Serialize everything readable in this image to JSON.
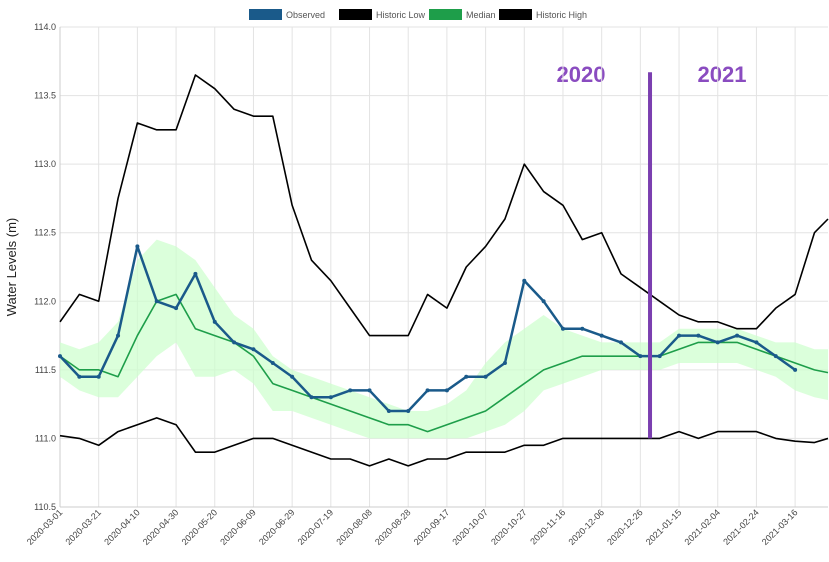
{
  "chart_data": {
    "type": "line",
    "ylabel": "Water Levels (m)",
    "x": [
      "2020-03-01",
      "2020-03-11",
      "2020-03-21",
      "2020-03-31",
      "2020-04-10",
      "2020-04-20",
      "2020-04-30",
      "2020-05-10",
      "2020-05-20",
      "2020-05-30",
      "2020-06-09",
      "2020-06-19",
      "2020-06-29",
      "2020-07-09",
      "2020-07-19",
      "2020-07-29",
      "2020-08-08",
      "2020-08-18",
      "2020-08-28",
      "2020-09-07",
      "2020-09-17",
      "2020-09-27",
      "2020-10-07",
      "2020-10-17",
      "2020-10-27",
      "2020-11-06",
      "2020-11-16",
      "2020-11-26",
      "2020-12-06",
      "2020-12-16",
      "2020-12-26",
      "2021-01-05",
      "2021-01-15",
      "2021-01-25",
      "2021-02-04",
      "2021-02-14",
      "2021-02-24",
      "2021-03-06",
      "2021-03-16",
      "2021-03-26",
      "2021-04-02"
    ],
    "series": [
      {
        "name": "Observed",
        "color": "#1a5a8a",
        "markers": true,
        "values": [
          111.6,
          111.45,
          111.45,
          111.75,
          112.4,
          112.0,
          111.95,
          112.2,
          111.85,
          111.7,
          111.65,
          111.55,
          111.45,
          111.3,
          111.3,
          111.35,
          111.35,
          111.2,
          111.2,
          111.35,
          111.35,
          111.45,
          111.45,
          111.55,
          112.15,
          112.0,
          111.8,
          111.8,
          111.75,
          111.7,
          111.6,
          111.6,
          111.75,
          111.75,
          111.7,
          111.75,
          111.7,
          111.6,
          111.5,
          null,
          null
        ]
      },
      {
        "name": "Historic Low",
        "color": "#000000",
        "values": [
          111.02,
          111.0,
          110.95,
          111.05,
          111.1,
          111.15,
          111.1,
          110.9,
          110.9,
          110.95,
          111.0,
          111.0,
          110.95,
          110.9,
          110.85,
          110.85,
          110.8,
          110.85,
          110.8,
          110.85,
          110.85,
          110.9,
          110.9,
          110.9,
          110.95,
          110.95,
          111.0,
          111.0,
          111.0,
          111.0,
          111.0,
          111.0,
          111.05,
          111.0,
          111.05,
          111.05,
          111.05,
          111.0,
          110.98,
          110.97,
          111.0
        ]
      },
      {
        "name": "Median",
        "color": "#1e9e4a",
        "values": [
          111.6,
          111.5,
          111.5,
          111.45,
          111.75,
          112.0,
          112.05,
          111.8,
          111.75,
          111.7,
          111.6,
          111.4,
          111.35,
          111.3,
          111.25,
          111.2,
          111.15,
          111.1,
          111.1,
          111.05,
          111.1,
          111.15,
          111.2,
          111.3,
          111.4,
          111.5,
          111.55,
          111.6,
          111.6,
          111.6,
          111.6,
          111.6,
          111.65,
          111.7,
          111.7,
          111.7,
          111.65,
          111.6,
          111.55,
          111.5,
          111.48
        ]
      },
      {
        "name": "Historic High",
        "color": "#000000",
        "values": [
          111.85,
          112.05,
          112.0,
          112.75,
          113.3,
          113.25,
          113.25,
          113.65,
          113.55,
          113.4,
          113.35,
          113.35,
          112.7,
          112.3,
          112.15,
          111.95,
          111.75,
          111.75,
          111.75,
          112.05,
          111.95,
          112.25,
          112.4,
          112.6,
          113.0,
          112.8,
          112.7,
          112.45,
          112.5,
          112.2,
          112.1,
          112.0,
          111.9,
          111.85,
          111.85,
          111.8,
          111.8,
          111.95,
          112.05,
          112.5,
          112.6
        ]
      }
    ],
    "band": {
      "color": "#ccffcc",
      "upper": [
        111.7,
        111.65,
        111.7,
        111.85,
        112.3,
        112.45,
        112.4,
        112.3,
        112.1,
        111.9,
        111.8,
        111.6,
        111.5,
        111.45,
        111.4,
        111.35,
        111.3,
        111.25,
        111.2,
        111.2,
        111.25,
        111.35,
        111.55,
        111.7,
        111.8,
        111.9,
        111.8,
        111.75,
        111.7,
        111.7,
        111.7,
        111.7,
        111.8,
        111.8,
        111.8,
        111.8,
        111.75,
        111.7,
        111.7,
        111.65,
        111.65
      ],
      "lower": [
        111.45,
        111.35,
        111.3,
        111.3,
        111.45,
        111.6,
        111.7,
        111.45,
        111.45,
        111.5,
        111.4,
        111.2,
        111.2,
        111.15,
        111.1,
        111.05,
        111.0,
        111.0,
        111.0,
        111.0,
        111.0,
        111.0,
        111.05,
        111.1,
        111.2,
        111.35,
        111.4,
        111.45,
        111.5,
        111.5,
        111.5,
        111.5,
        111.55,
        111.55,
        111.55,
        111.55,
        111.5,
        111.45,
        111.35,
        111.3,
        111.28
      ]
    },
    "xlim": [
      "2020-03-01",
      "2021-04-02"
    ],
    "xticks": [
      "2020-03-01",
      "2020-03-21",
      "2020-04-10",
      "2020-04-30",
      "2020-05-20",
      "2020-06-09",
      "2020-06-29",
      "2020-07-19",
      "2020-08-08",
      "2020-08-28",
      "2020-09-17",
      "2020-10-07",
      "2020-10-27",
      "2020-11-16",
      "2020-12-06",
      "2020-12-26",
      "2021-01-15",
      "2021-02-04",
      "2021-02-24",
      "2021-03-16"
    ],
    "ylim": [
      110.5,
      114.0
    ],
    "yticks": [
      {
        "value": 110.5,
        "label": "110.5"
      },
      {
        "value": 111,
        "label": "111.0"
      },
      111.5,
      {
        "value": 112,
        "label": "112.0"
      },
      112.5,
      {
        "value": 113,
        "label": "113.0"
      },
      113.5,
      {
        "value": 114,
        "label": "114.0"
      }
    ],
    "grid": true,
    "legend": "top",
    "divider": {
      "x": "2020-12-31",
      "y": [
        111.0,
        113.67
      ],
      "color": "#7b3fb0"
    },
    "annotations": [
      "2020",
      "2021"
    ]
  }
}
